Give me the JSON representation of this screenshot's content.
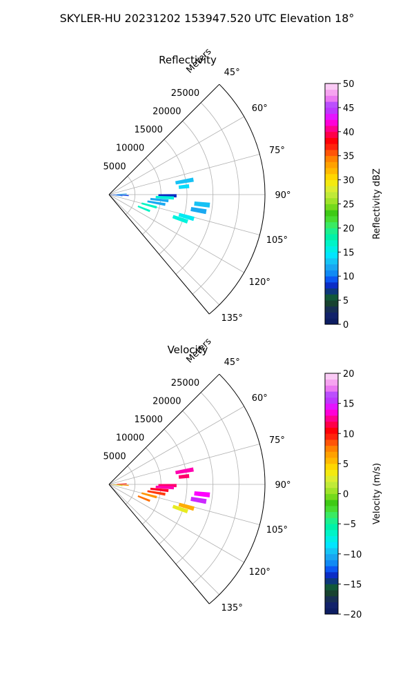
{
  "suptitle": "SKYLER-HU  20231202  153947.520 UTC Elevation 18°",
  "chart_data": [
    {
      "type": "polar-sector",
      "title": "Reflectivity",
      "range_label": "Meters",
      "r_ticks": [
        5000,
        10000,
        15000,
        20000,
        25000
      ],
      "r_tick_labels": [
        "5000",
        "10000",
        "15000",
        "20000",
        "25000"
      ],
      "r_max": 30000,
      "theta_range_deg": [
        45,
        140
      ],
      "theta_ticks": [
        45,
        60,
        75,
        90,
        105,
        120,
        135
      ],
      "theta_tick_labels": [
        "45°",
        "60°",
        "75°",
        "90°",
        "105°",
        "120°",
        "135°"
      ],
      "grid": true,
      "colorbar": {
        "label": "Reflectivity dBZ",
        "range": [
          0,
          50
        ],
        "ticks": [
          0,
          5,
          10,
          15,
          20,
          25,
          30,
          35,
          40,
          45,
          50
        ],
        "tick_labels": [
          "0",
          "5",
          "10",
          "15",
          "20",
          "25",
          "30",
          "35",
          "40",
          "45",
          "50"
        ]
      },
      "echoes": [
        {
          "az": 93,
          "r_from": 200,
          "r_to": 3800,
          "value": 9
        },
        {
          "az": 96,
          "r_from": 800,
          "r_to": 2600,
          "value": 11
        },
        {
          "az": 88,
          "r_from": 1500,
          "r_to": 3400,
          "value": 12
        },
        {
          "az": 91,
          "r_from": 9500,
          "r_to": 13000,
          "value": 8
        },
        {
          "az": 93,
          "r_from": 9000,
          "r_to": 12500,
          "value": 16
        },
        {
          "az": 96,
          "r_from": 8000,
          "r_to": 11500,
          "value": 12
        },
        {
          "az": 100,
          "r_from": 7500,
          "r_to": 11000,
          "value": 12
        },
        {
          "az": 105,
          "r_from": 6500,
          "r_to": 9500,
          "value": 17
        },
        {
          "az": 112,
          "r_from": 6000,
          "r_to": 8500,
          "value": 17
        },
        {
          "az": 80,
          "r_from": 13000,
          "r_to": 16500,
          "value": 13
        },
        {
          "az": 84,
          "r_from": 13500,
          "r_to": 15500,
          "value": 14
        },
        {
          "az": 96,
          "r_from": 16500,
          "r_to": 19500,
          "value": 13
        },
        {
          "az": 100,
          "r_from": 16000,
          "r_to": 19000,
          "value": 12
        },
        {
          "az": 106,
          "r_from": 14000,
          "r_to": 17000,
          "value": 15
        },
        {
          "az": 109,
          "r_from": 13000,
          "r_to": 16000,
          "value": 16
        }
      ]
    },
    {
      "type": "polar-sector",
      "title": "Velocity",
      "range_label": "Meters",
      "r_ticks": [
        5000,
        10000,
        15000,
        20000,
        25000
      ],
      "r_tick_labels": [
        "5000",
        "10000",
        "15000",
        "20000",
        "25000"
      ],
      "r_max": 30000,
      "theta_range_deg": [
        45,
        140
      ],
      "theta_ticks": [
        45,
        60,
        75,
        90,
        105,
        120,
        135
      ],
      "theta_tick_labels": [
        "45°",
        "60°",
        "75°",
        "90°",
        "105°",
        "120°",
        "135°"
      ],
      "grid": true,
      "colorbar": {
        "label": "Velocity (m/s)",
        "range": [
          -20,
          20
        ],
        "ticks": [
          -20,
          -15,
          -10,
          -5,
          0,
          5,
          10,
          15,
          20
        ],
        "tick_labels": [
          "−20",
          "−15",
          "−10",
          "−5",
          "0",
          "5",
          "10",
          "15",
          "20"
        ]
      },
      "echoes": [
        {
          "az": 93,
          "r_from": 200,
          "r_to": 3800,
          "value": 7
        },
        {
          "az": 96,
          "r_from": 800,
          "r_to": 2600,
          "value": 1
        },
        {
          "az": 88,
          "r_from": 1500,
          "r_to": 3400,
          "value": 10
        },
        {
          "az": 91,
          "r_from": 9500,
          "r_to": 13000,
          "value": 12
        },
        {
          "az": 93,
          "r_from": 9000,
          "r_to": 12500,
          "value": 13
        },
        {
          "az": 96,
          "r_from": 8000,
          "r_to": 11500,
          "value": 11
        },
        {
          "az": 100,
          "r_from": 7500,
          "r_to": 11000,
          "value": 9
        },
        {
          "az": 105,
          "r_from": 6500,
          "r_to": 9500,
          "value": 7
        },
        {
          "az": 112,
          "r_from": 6000,
          "r_to": 8500,
          "value": 8
        },
        {
          "az": 80,
          "r_from": 13000,
          "r_to": 16500,
          "value": 13
        },
        {
          "az": 84,
          "r_from": 13500,
          "r_to": 15500,
          "value": 12
        },
        {
          "az": 96,
          "r_from": 16500,
          "r_to": 19500,
          "value": 14
        },
        {
          "az": 100,
          "r_from": 16000,
          "r_to": 19000,
          "value": 15
        },
        {
          "az": 106,
          "r_from": 14000,
          "r_to": 17000,
          "value": 6
        },
        {
          "az": 109,
          "r_from": 13000,
          "r_to": 16000,
          "value": 3
        }
      ]
    }
  ]
}
